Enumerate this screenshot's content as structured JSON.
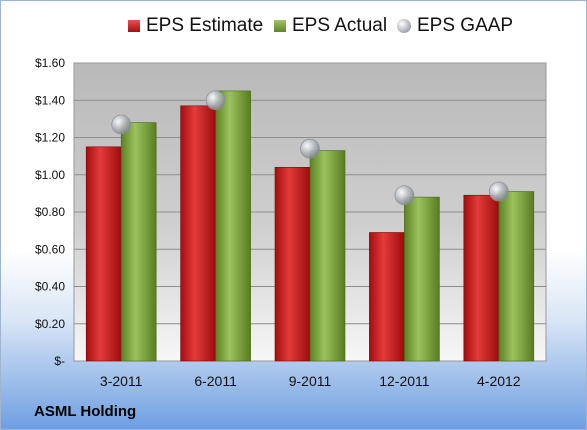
{
  "chart_data": {
    "type": "bar",
    "categories": [
      "3-2011",
      "6-2011",
      "9-2011",
      "12-2011",
      "4-2012"
    ],
    "series": [
      {
        "name": "EPS Estimate",
        "values": [
          1.15,
          1.37,
          1.04,
          0.69,
          0.89
        ],
        "color": "#cc1f1f",
        "kind": "bar"
      },
      {
        "name": "EPS Actual",
        "values": [
          1.28,
          1.45,
          1.13,
          0.88,
          0.91
        ],
        "color": "#7da33f",
        "kind": "bar"
      },
      {
        "name": "EPS GAAP",
        "values": [
          1.27,
          1.4,
          1.14,
          0.89,
          0.91
        ],
        "color": "#b9bcc2",
        "kind": "marker"
      }
    ],
    "yticks": [
      "$-",
      "$0.20",
      "$0.40",
      "$0.60",
      "$0.80",
      "$1.00",
      "$1.20",
      "$1.40",
      "$1.60"
    ],
    "ylim": [
      0,
      1.6
    ],
    "grid": true,
    "legend": "top"
  },
  "footer": {
    "company": "ASML Holding"
  }
}
